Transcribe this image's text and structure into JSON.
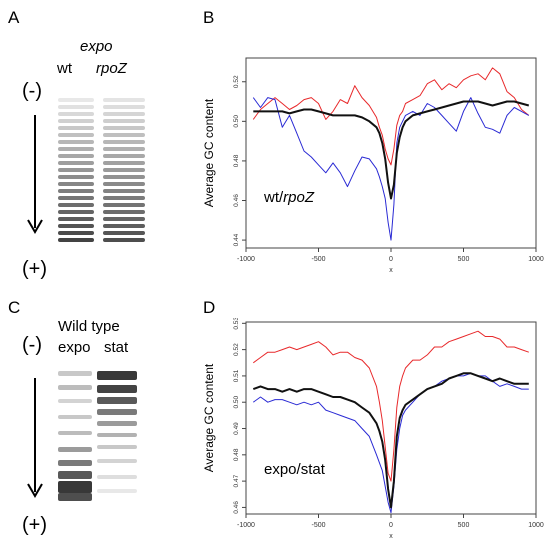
{
  "panels": {
    "a": {
      "letter": "A",
      "header_italic": "expo",
      "lane_labels": [
        "wt",
        "rpoZ"
      ]
    },
    "b": {
      "letter": "B"
    },
    "c": {
      "letter": "C",
      "header": "Wild type",
      "lane_labels": [
        "expo",
        "stat"
      ]
    },
    "d": {
      "letter": "D"
    }
  },
  "gel_markers": {
    "minus": "(-)",
    "plus": "(+)"
  },
  "colors": {
    "red": "#e8292b",
    "blue": "#2a2ad4",
    "black": "#111111",
    "gel_band": "#222222"
  },
  "chart_data": [
    {
      "id": "B",
      "type": "line",
      "title": "",
      "xlabel": "x",
      "ylabel": "Average GC content",
      "annotation_plain": "wt/",
      "annotation_italic": "rpoZ",
      "xlim": [
        -1000,
        1000
      ],
      "ylim": [
        0.436,
        0.532
      ],
      "xticks": [
        -1000,
        -500,
        0,
        500,
        1000
      ],
      "xtick_labels": [
        "-1000",
        "-500",
        "0",
        "500",
        "1000"
      ],
      "yticks": [
        0.44,
        0.46,
        0.48,
        0.5,
        0.52
      ],
      "ytick_labels": [
        "0.44",
        "0.46",
        "0.48",
        "0.50",
        "0.52"
      ],
      "series": [
        {
          "color": "red",
          "x": [
            -950,
            -900,
            -850,
            -800,
            -750,
            -700,
            -650,
            -600,
            -550,
            -500,
            -450,
            -400,
            -350,
            -300,
            -250,
            -200,
            -150,
            -100,
            -80,
            -60,
            -40,
            -20,
            0,
            20,
            40,
            60,
            80,
            100,
            150,
            200,
            250,
            300,
            350,
            400,
            450,
            500,
            550,
            600,
            650,
            700,
            750,
            800,
            850,
            900,
            950
          ],
          "y": [
            0.501,
            0.506,
            0.509,
            0.512,
            0.509,
            0.506,
            0.508,
            0.511,
            0.512,
            0.509,
            0.501,
            0.505,
            0.511,
            0.509,
            0.518,
            0.512,
            0.508,
            0.502,
            0.497,
            0.493,
            0.486,
            0.481,
            0.478,
            0.486,
            0.498,
            0.503,
            0.505,
            0.509,
            0.511,
            0.513,
            0.519,
            0.521,
            0.516,
            0.519,
            0.517,
            0.521,
            0.523,
            0.524,
            0.521,
            0.527,
            0.524,
            0.515,
            0.512,
            0.506,
            0.503
          ]
        },
        {
          "color": "blue",
          "x": [
            -950,
            -900,
            -850,
            -800,
            -750,
            -700,
            -650,
            -600,
            -550,
            -500,
            -450,
            -400,
            -350,
            -300,
            -250,
            -200,
            -150,
            -100,
            -80,
            -60,
            -40,
            -20,
            0,
            20,
            40,
            60,
            80,
            100,
            150,
            200,
            250,
            300,
            350,
            400,
            450,
            500,
            550,
            600,
            650,
            700,
            750,
            800,
            850,
            900,
            950
          ],
          "y": [
            0.512,
            0.507,
            0.512,
            0.511,
            0.497,
            0.503,
            0.494,
            0.485,
            0.482,
            0.478,
            0.474,
            0.479,
            0.474,
            0.467,
            0.475,
            0.482,
            0.481,
            0.476,
            0.472,
            0.467,
            0.461,
            0.449,
            0.44,
            0.458,
            0.489,
            0.497,
            0.5,
            0.503,
            0.505,
            0.503,
            0.509,
            0.507,
            0.503,
            0.499,
            0.495,
            0.505,
            0.512,
            0.504,
            0.497,
            0.496,
            0.494,
            0.503,
            0.507,
            0.505,
            0.503
          ]
        },
        {
          "color": "black",
          "x": [
            -950,
            -900,
            -850,
            -800,
            -750,
            -700,
            -650,
            -600,
            -550,
            -500,
            -450,
            -400,
            -350,
            -300,
            -250,
            -200,
            -150,
            -100,
            -80,
            -60,
            -40,
            -20,
            0,
            20,
            40,
            60,
            80,
            100,
            150,
            200,
            250,
            300,
            350,
            400,
            450,
            500,
            550,
            600,
            650,
            700,
            750,
            800,
            850,
            900,
            950
          ],
          "y": [
            0.505,
            0.505,
            0.505,
            0.505,
            0.505,
            0.504,
            0.505,
            0.506,
            0.506,
            0.505,
            0.504,
            0.503,
            0.503,
            0.503,
            0.503,
            0.502,
            0.5,
            0.497,
            0.494,
            0.489,
            0.481,
            0.469,
            0.461,
            0.468,
            0.484,
            0.492,
            0.497,
            0.5,
            0.503,
            0.504,
            0.505,
            0.506,
            0.507,
            0.508,
            0.509,
            0.51,
            0.51,
            0.51,
            0.509,
            0.508,
            0.509,
            0.51,
            0.51,
            0.509,
            0.508
          ]
        }
      ]
    },
    {
      "id": "D",
      "type": "line",
      "title": "",
      "xlabel": "x",
      "ylabel": "Average GC content",
      "annotation_plain": "expo/stat",
      "annotation_italic": "",
      "xlim": [
        -1000,
        1000
      ],
      "ylim": [
        0.4575,
        0.5305
      ],
      "xticks": [
        -1000,
        -500,
        0,
        500,
        1000
      ],
      "xtick_labels": [
        "-1000",
        "-500",
        "0",
        "500",
        "1000"
      ],
      "yticks": [
        0.46,
        0.47,
        0.48,
        0.49,
        0.5,
        0.51,
        0.52,
        0.53
      ],
      "ytick_labels": [
        "0.46",
        "0.47",
        "0.48",
        "0.49",
        "0.50",
        "0.51",
        "0.52",
        "0.53"
      ],
      "series": [
        {
          "color": "red",
          "x": [
            -950,
            -900,
            -850,
            -800,
            -750,
            -700,
            -650,
            -600,
            -550,
            -500,
            -450,
            -400,
            -350,
            -300,
            -250,
            -200,
            -150,
            -100,
            -80,
            -60,
            -40,
            -20,
            0,
            20,
            40,
            60,
            80,
            100,
            150,
            200,
            250,
            300,
            350,
            400,
            450,
            500,
            550,
            600,
            650,
            700,
            750,
            800,
            850,
            900,
            950
          ],
          "y": [
            0.515,
            0.517,
            0.519,
            0.519,
            0.52,
            0.521,
            0.52,
            0.521,
            0.522,
            0.523,
            0.521,
            0.518,
            0.519,
            0.519,
            0.517,
            0.516,
            0.513,
            0.506,
            0.5,
            0.493,
            0.483,
            0.473,
            0.47,
            0.482,
            0.498,
            0.506,
            0.51,
            0.513,
            0.516,
            0.516,
            0.518,
            0.521,
            0.521,
            0.523,
            0.524,
            0.525,
            0.526,
            0.527,
            0.525,
            0.525,
            0.524,
            0.521,
            0.521,
            0.52,
            0.519
          ]
        },
        {
          "color": "blue",
          "x": [
            -950,
            -900,
            -850,
            -800,
            -750,
            -700,
            -650,
            -600,
            -550,
            -500,
            -450,
            -400,
            -350,
            -300,
            -250,
            -200,
            -150,
            -100,
            -80,
            -60,
            -40,
            -20,
            0,
            20,
            40,
            60,
            80,
            100,
            150,
            200,
            250,
            300,
            350,
            400,
            450,
            500,
            550,
            600,
            650,
            700,
            750,
            800,
            850,
            900,
            950
          ],
          "y": [
            0.5,
            0.502,
            0.5,
            0.501,
            0.501,
            0.5,
            0.499,
            0.5,
            0.499,
            0.5,
            0.497,
            0.496,
            0.495,
            0.494,
            0.493,
            0.49,
            0.487,
            0.48,
            0.477,
            0.474,
            0.468,
            0.462,
            0.458,
            0.468,
            0.482,
            0.49,
            0.495,
            0.497,
            0.5,
            0.503,
            0.505,
            0.506,
            0.508,
            0.509,
            0.51,
            0.51,
            0.511,
            0.51,
            0.51,
            0.508,
            0.506,
            0.507,
            0.506,
            0.505,
            0.505
          ]
        },
        {
          "color": "black",
          "x": [
            -950,
            -900,
            -850,
            -800,
            -750,
            -700,
            -650,
            -600,
            -550,
            -500,
            -450,
            -400,
            -350,
            -300,
            -250,
            -200,
            -150,
            -100,
            -80,
            -60,
            -40,
            -20,
            0,
            20,
            40,
            60,
            80,
            100,
            150,
            200,
            250,
            300,
            350,
            400,
            450,
            500,
            550,
            600,
            650,
            700,
            750,
            800,
            850,
            900,
            950
          ],
          "y": [
            0.505,
            0.506,
            0.505,
            0.505,
            0.504,
            0.505,
            0.504,
            0.505,
            0.505,
            0.504,
            0.503,
            0.502,
            0.502,
            0.501,
            0.5,
            0.498,
            0.496,
            0.492,
            0.489,
            0.485,
            0.478,
            0.467,
            0.46,
            0.47,
            0.487,
            0.494,
            0.497,
            0.499,
            0.501,
            0.503,
            0.505,
            0.506,
            0.507,
            0.509,
            0.51,
            0.511,
            0.511,
            0.51,
            0.509,
            0.508,
            0.509,
            0.508,
            0.507,
            0.507,
            0.507
          ]
        }
      ]
    }
  ]
}
